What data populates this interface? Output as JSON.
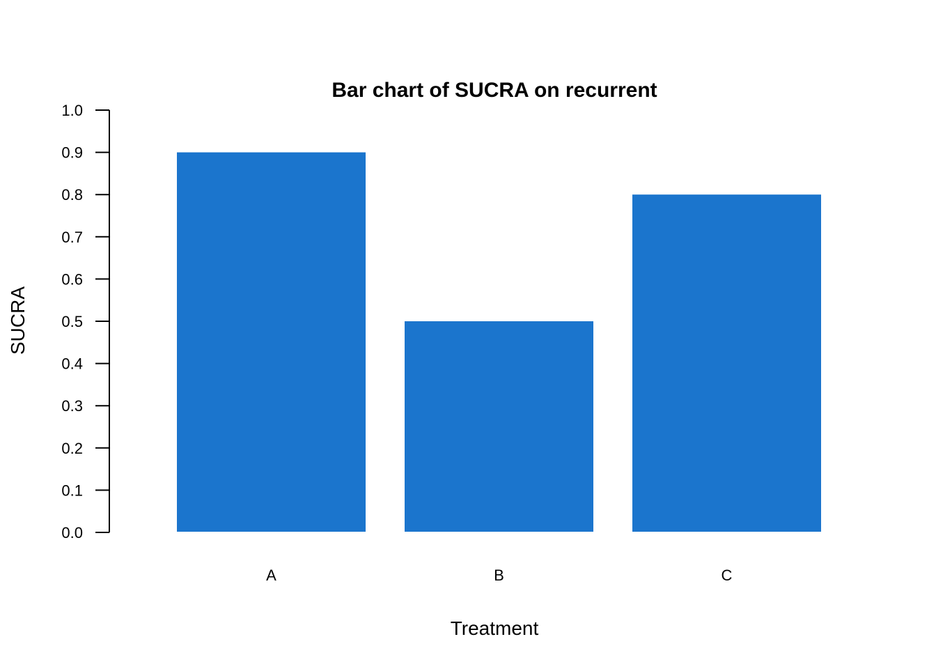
{
  "chart_data": {
    "type": "bar",
    "title": "Bar chart of SUCRA on recurrent",
    "xlabel": "Treatment",
    "ylabel": "SUCRA",
    "categories": [
      "A",
      "B",
      "C"
    ],
    "values": [
      0.9,
      0.5,
      0.8
    ],
    "ylim": [
      0,
      1.0
    ],
    "yticks": [
      "0.0",
      "0.1",
      "0.2",
      "0.3",
      "0.4",
      "0.5",
      "0.6",
      "0.7",
      "0.8",
      "0.9",
      "1.0"
    ],
    "grid": false,
    "legend": "none",
    "bar_color": "#1b75cd"
  }
}
